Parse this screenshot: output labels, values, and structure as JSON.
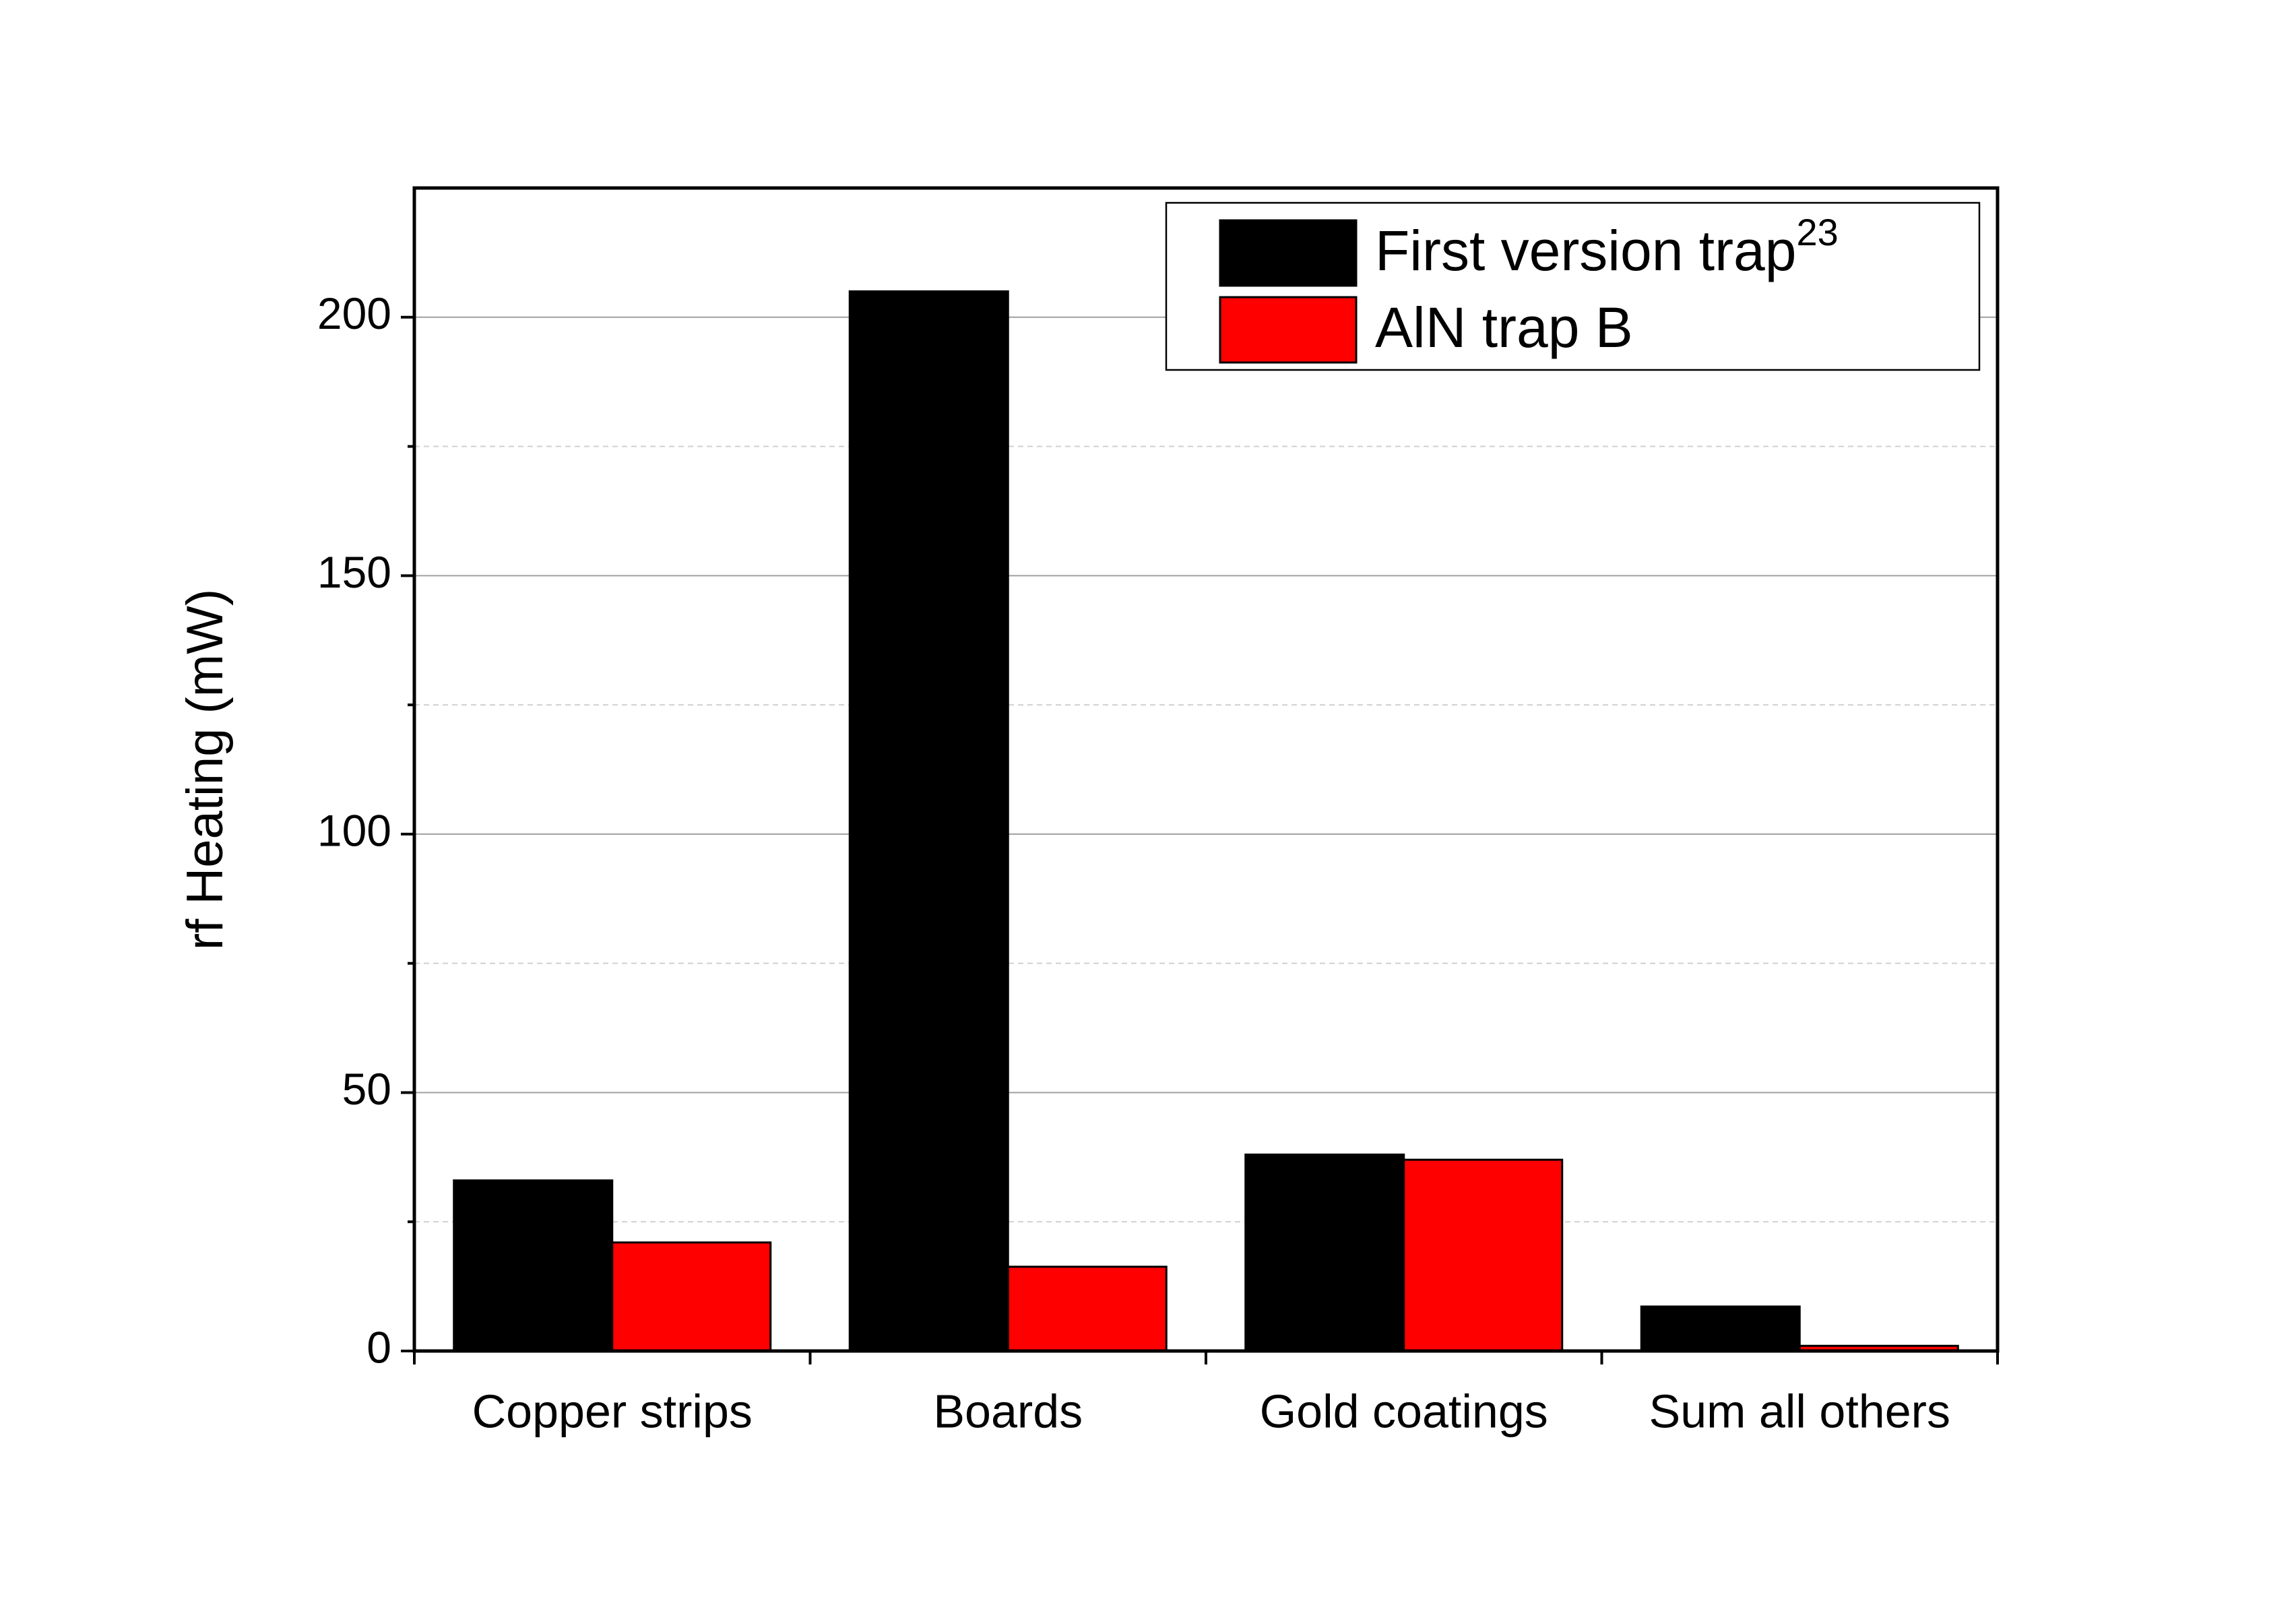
{
  "chart_data": {
    "type": "bar",
    "y_label": "rf Heating (mW)",
    "categories": [
      "Copper strips",
      "Boards",
      "Gold coatings",
      "Sum all others"
    ],
    "series": [
      {
        "name": "First version trap",
        "superscript": "23",
        "color": "#000000",
        "values": [
          33,
          205,
          38,
          8.6
        ]
      },
      {
        "name": "AlN trap B",
        "color": "#ff0000",
        "values": [
          21,
          16.3,
          37,
          1
        ]
      }
    ],
    "ylim": [
      0,
      225
    ],
    "yticks": [
      0,
      50,
      100,
      150,
      200
    ],
    "minor_yticks": [
      25,
      75,
      125,
      175
    ],
    "grid": true,
    "legend_position": "upper right"
  }
}
